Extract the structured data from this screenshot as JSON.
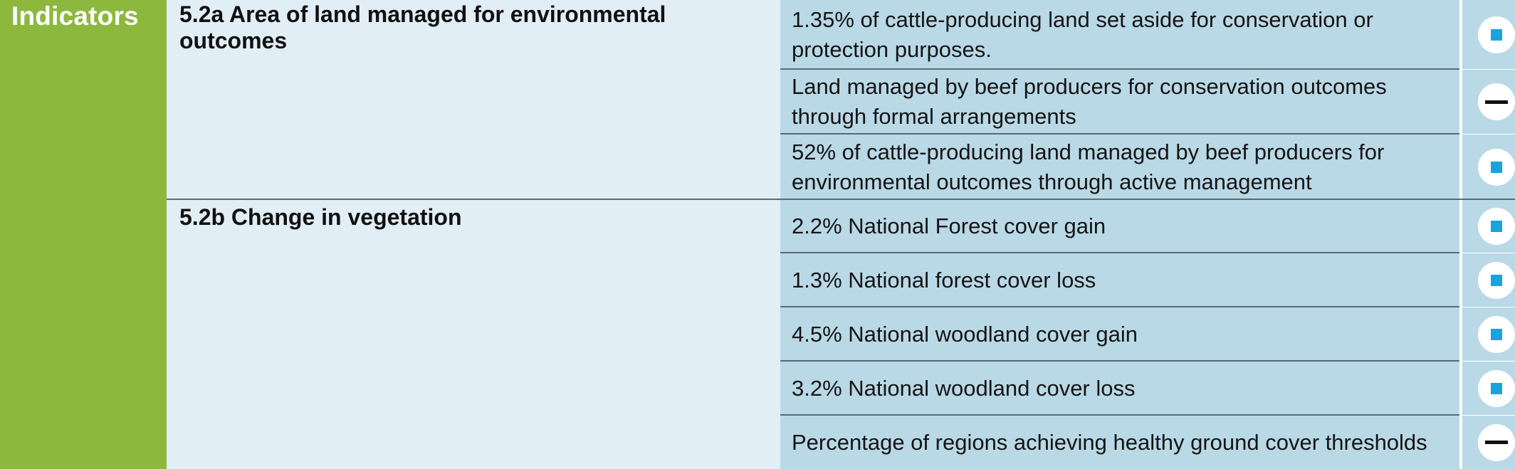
{
  "section_label": "Indicators",
  "indicators": [
    {
      "title": "5.2a Area of land managed for environmental outcomes",
      "rows": [
        {
          "text": "1.35% of cattle-producing land set aside for conservation or protection purposes.",
          "status": "square-icon"
        },
        {
          "text": "Land managed by beef producers for conservation outcomes through formal arrangements",
          "status": "dash-icon"
        },
        {
          "text": "52% of cattle-producing land managed by beef producers for environmental outcomes through active management",
          "status": "square-icon"
        }
      ]
    },
    {
      "title": "5.2b Change in vegetation",
      "rows": [
        {
          "text": "2.2% National Forest cover gain",
          "status": "square-icon"
        },
        {
          "text": "1.3% National forest cover loss",
          "status": "square-icon"
        },
        {
          "text": "4.5% National woodland cover gain",
          "status": "square-icon"
        },
        {
          "text": "3.2% National woodland cover loss",
          "status": "square-icon"
        },
        {
          "text": "Percentage of regions achieving healthy ground cover thresholds",
          "status": "dash-icon"
        }
      ]
    }
  ],
  "colors": {
    "side_green": "#8db83e",
    "indicator_bg": "#e2eef6",
    "measure_bg": "#bad9e7",
    "square_blue": "#19a4dd"
  }
}
